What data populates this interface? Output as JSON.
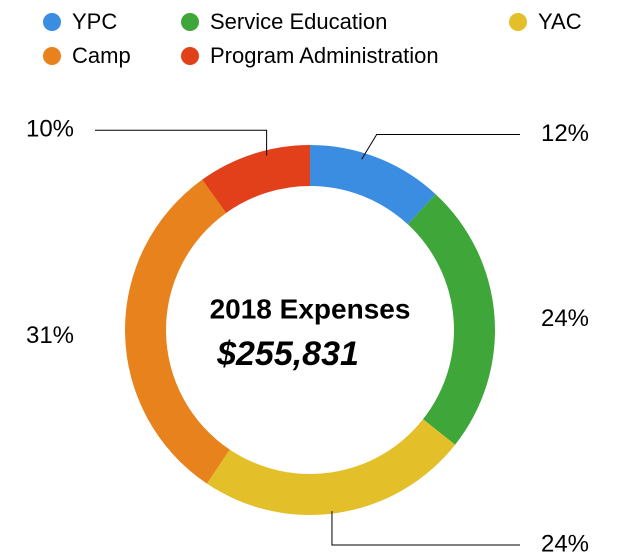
{
  "chart_data": {
    "type": "donut",
    "title": "2018 Expenses",
    "center_label": "$255,831",
    "categories": [
      "YPC",
      "Service Education",
      "YAC",
      "Camp",
      "Program Administration"
    ],
    "values": [
      12,
      24,
      24,
      31,
      10
    ],
    "value_labels": [
      "12%",
      "24%",
      "24%",
      "31%",
      "10%"
    ],
    "colors": [
      "#3a8de0",
      "#3fa63a",
      "#e3c02a",
      "#e8821c",
      "#e2401a"
    ],
    "legend": "top"
  }
}
